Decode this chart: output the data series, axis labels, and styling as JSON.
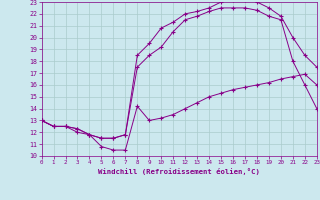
{
  "xlabel": "Windchill (Refroidissement éolien,°C)",
  "xlim": [
    0,
    23
  ],
  "ylim": [
    10,
    23
  ],
  "xticks": [
    0,
    1,
    2,
    3,
    4,
    5,
    6,
    7,
    8,
    9,
    10,
    11,
    12,
    13,
    14,
    15,
    16,
    17,
    18,
    19,
    20,
    21,
    22,
    23
  ],
  "yticks": [
    10,
    11,
    12,
    13,
    14,
    15,
    16,
    17,
    18,
    19,
    20,
    21,
    22,
    23
  ],
  "bg_color": "#cce8ee",
  "grid_color": "#aacccc",
  "line_color": "#880088",
  "line1_x": [
    0,
    1,
    2,
    3,
    4,
    5,
    6,
    7,
    8,
    9,
    10,
    11,
    12,
    13,
    14,
    15,
    16,
    17,
    18,
    19,
    20,
    21,
    22,
    23
  ],
  "line1_y": [
    13,
    12.5,
    12.5,
    12.0,
    11.8,
    10.8,
    10.5,
    10.5,
    14.2,
    13.0,
    13.2,
    13.5,
    14.0,
    14.5,
    15.0,
    15.3,
    15.6,
    15.8,
    16.0,
    16.2,
    16.5,
    16.7,
    16.9,
    16.0
  ],
  "line2_x": [
    0,
    1,
    2,
    3,
    4,
    5,
    6,
    7,
    8,
    9,
    10,
    11,
    12,
    13,
    14,
    15,
    16,
    17,
    18,
    19,
    20,
    21,
    22,
    23
  ],
  "line2_y": [
    13,
    12.5,
    12.5,
    12.3,
    11.8,
    11.5,
    11.5,
    11.8,
    17.5,
    18.5,
    19.2,
    20.5,
    21.5,
    21.8,
    22.2,
    22.5,
    22.5,
    22.5,
    22.3,
    21.8,
    21.5,
    18.0,
    16.0,
    14.0
  ],
  "line3_x": [
    0,
    1,
    2,
    3,
    4,
    5,
    6,
    7,
    8,
    9,
    10,
    11,
    12,
    13,
    14,
    15,
    16,
    17,
    18,
    19,
    20,
    21,
    22,
    23
  ],
  "line3_y": [
    13,
    12.5,
    12.5,
    12.3,
    11.8,
    11.5,
    11.5,
    11.8,
    18.5,
    19.5,
    20.8,
    21.3,
    22.0,
    22.2,
    22.5,
    23.0,
    23.2,
    23.2,
    23.0,
    22.5,
    21.8,
    20.0,
    18.5,
    17.5
  ]
}
